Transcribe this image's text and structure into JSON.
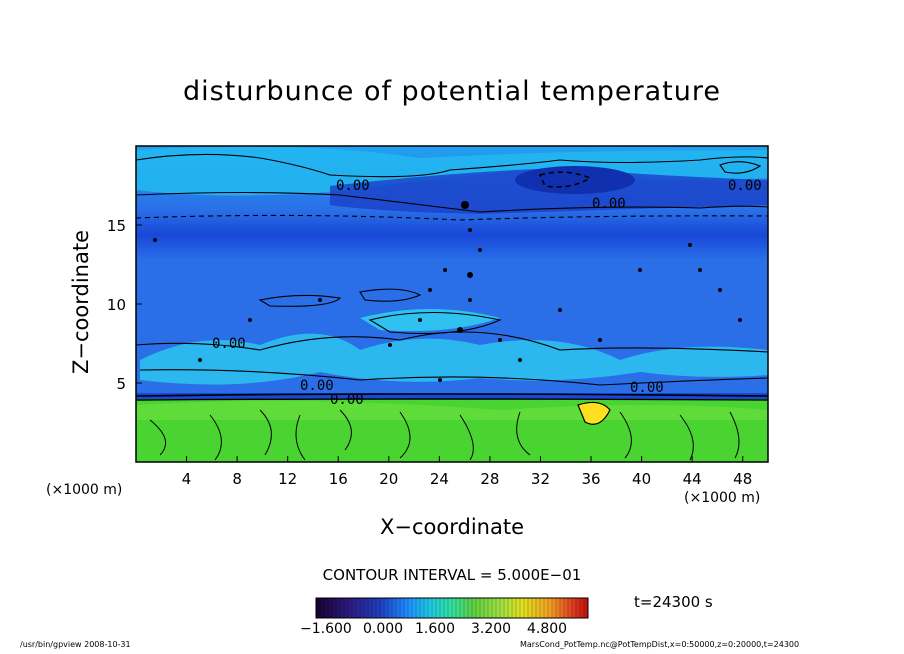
{
  "chart_data": {
    "type": "heatmap",
    "title": "disturbunce of potential temperature",
    "xlabel": "X−coordinate",
    "ylabel": "Z−coordinate",
    "x_unit": "(×1000 m)",
    "z_unit": "(×1000 m)",
    "xlim": [
      0,
      50
    ],
    "zlim": [
      0,
      20
    ],
    "x_ticks": [
      4,
      8,
      12,
      16,
      20,
      24,
      28,
      32,
      36,
      40,
      44,
      48
    ],
    "z_ticks": [
      5,
      10,
      15
    ],
    "contour_labels": [
      "0.00",
      "0.00",
      "0.00",
      "0.00",
      "0.00",
      "0.00",
      "0.00"
    ],
    "contour_interval": "CONTOUR INTERVAL = 5.000E−01",
    "time": "t=24300 s",
    "colorbar": {
      "ticks": [
        "−1.600",
        "0.000",
        "1.600",
        "3.200",
        "4.800"
      ],
      "colors": [
        "#1a0030",
        "#2b1a80",
        "#2040c0",
        "#1e90ff",
        "#20c8e0",
        "#30e0a0",
        "#60d040",
        "#a0e040",
        "#e0e020",
        "#f0a020",
        "#e04020",
        "#c01010"
      ]
    },
    "colors": {
      "upper": "#2a6fe8",
      "band_dark": "#1848d8",
      "lower": "#44d830",
      "cyan": "#30c8f0"
    }
  },
  "footer": {
    "left": "/usr/bin/gpview   2008-10-31",
    "right": "MarsCond_PotTemp.nc@PotTempDist,x=0:50000,z=0:20000,t=24300"
  }
}
